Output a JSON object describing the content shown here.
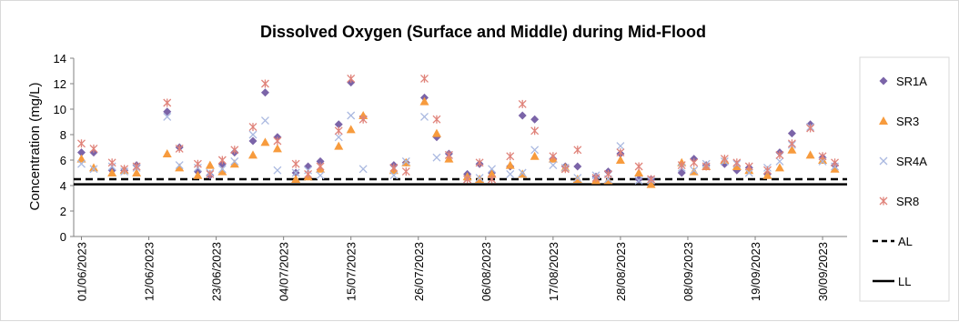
{
  "chart_data": {
    "type": "scatter",
    "title": "Dissolved Oxygen (Surface and Middle) during Mid-Flood",
    "xlabel": "",
    "ylabel": "Concentration (mg/L)",
    "ylim": [
      0,
      14
    ],
    "yticks": [
      0,
      2,
      4,
      6,
      8,
      10,
      12,
      14
    ],
    "xlim": [
      "2023-06-01",
      "2023-09-30"
    ],
    "xtick_labels": [
      "01/06/2023",
      "12/06/2023",
      "23/06/2023",
      "04/07/2023",
      "15/07/2023",
      "26/07/2023",
      "06/08/2023",
      "17/08/2023",
      "28/08/2023",
      "08/09/2023",
      "19/09/2023",
      "30/09/2023"
    ],
    "grid": false,
    "legend_position": "right",
    "series": [
      {
        "name": "SR1A",
        "marker": "diamond",
        "color": "#7B64A8",
        "points": [
          [
            "2023-06-01",
            6.6
          ],
          [
            "2023-06-03",
            6.6
          ],
          [
            "2023-06-06",
            5.2
          ],
          [
            "2023-06-08",
            5.2
          ],
          [
            "2023-06-10",
            5.6
          ],
          [
            "2023-06-15",
            9.8
          ],
          [
            "2023-06-17",
            7.0
          ],
          [
            "2023-06-20",
            5.1
          ],
          [
            "2023-06-22",
            4.8
          ],
          [
            "2023-06-24",
            5.7
          ],
          [
            "2023-06-26",
            6.6
          ],
          [
            "2023-06-29",
            7.5
          ],
          [
            "2023-07-01",
            11.3
          ],
          [
            "2023-07-03",
            7.8
          ],
          [
            "2023-07-06",
            5.0
          ],
          [
            "2023-07-08",
            5.5
          ],
          [
            "2023-07-10",
            5.9
          ],
          [
            "2023-07-13",
            8.8
          ],
          [
            "2023-07-15",
            12.1
          ],
          [
            "2023-07-17",
            9.4
          ],
          [
            "2023-07-22",
            5.6
          ],
          [
            "2023-07-24",
            5.8
          ],
          [
            "2023-07-27",
            10.9
          ],
          [
            "2023-07-29",
            7.8
          ],
          [
            "2023-07-31",
            6.5
          ],
          [
            "2023-08-03",
            4.9
          ],
          [
            "2023-08-05",
            5.7
          ],
          [
            "2023-08-07",
            5.0
          ],
          [
            "2023-08-10",
            5.5
          ],
          [
            "2023-08-12",
            9.5
          ],
          [
            "2023-08-14",
            9.2
          ],
          [
            "2023-08-17",
            6.1
          ],
          [
            "2023-08-19",
            5.5
          ],
          [
            "2023-08-21",
            5.5
          ],
          [
            "2023-08-24",
            4.7
          ],
          [
            "2023-08-26",
            5.1
          ],
          [
            "2023-08-28",
            6.5
          ],
          [
            "2023-08-31",
            4.5
          ],
          [
            "2023-09-02",
            4.5
          ],
          [
            "2023-09-07",
            5.0
          ],
          [
            "2023-09-09",
            6.1
          ],
          [
            "2023-09-11",
            5.6
          ],
          [
            "2023-09-14",
            5.7
          ],
          [
            "2023-09-16",
            5.2
          ],
          [
            "2023-09-18",
            5.4
          ],
          [
            "2023-09-21",
            4.9
          ],
          [
            "2023-09-23",
            6.6
          ],
          [
            "2023-09-25",
            8.1
          ],
          [
            "2023-09-28",
            8.8
          ],
          [
            "2023-09-30",
            6.2
          ],
          [
            "2023-10-02",
            5.6
          ]
        ]
      },
      {
        "name": "SR3",
        "marker": "triangle",
        "color": "#F79B3D",
        "points": [
          [
            "2023-06-01",
            6.1
          ],
          [
            "2023-06-03",
            5.4
          ],
          [
            "2023-06-06",
            5.0
          ],
          [
            "2023-06-08",
            5.2
          ],
          [
            "2023-06-10",
            5.0
          ],
          [
            "2023-06-15",
            6.5
          ],
          [
            "2023-06-17",
            5.4
          ],
          [
            "2023-06-20",
            4.8
          ],
          [
            "2023-06-22",
            5.6
          ],
          [
            "2023-06-24",
            5.1
          ],
          [
            "2023-06-26",
            5.7
          ],
          [
            "2023-06-29",
            6.4
          ],
          [
            "2023-07-01",
            7.4
          ],
          [
            "2023-07-03",
            6.9
          ],
          [
            "2023-07-06",
            4.5
          ],
          [
            "2023-07-08",
            4.7
          ],
          [
            "2023-07-10",
            5.3
          ],
          [
            "2023-07-13",
            7.1
          ],
          [
            "2023-07-15",
            8.4
          ],
          [
            "2023-07-17",
            9.5
          ],
          [
            "2023-07-22",
            5.2
          ],
          [
            "2023-07-24",
            5.8
          ],
          [
            "2023-07-27",
            10.6
          ],
          [
            "2023-07-29",
            8.1
          ],
          [
            "2023-07-31",
            6.1
          ],
          [
            "2023-08-03",
            4.7
          ],
          [
            "2023-08-05",
            4.5
          ],
          [
            "2023-08-07",
            4.9
          ],
          [
            "2023-08-10",
            5.6
          ],
          [
            "2023-08-12",
            4.9
          ],
          [
            "2023-08-14",
            6.3
          ],
          [
            "2023-08-17",
            6.1
          ],
          [
            "2023-08-19",
            5.4
          ],
          [
            "2023-08-21",
            4.5
          ],
          [
            "2023-08-24",
            4.4
          ],
          [
            "2023-08-26",
            4.4
          ],
          [
            "2023-08-28",
            6.0
          ],
          [
            "2023-08-31",
            5.0
          ],
          [
            "2023-09-02",
            4.1
          ],
          [
            "2023-09-07",
            5.8
          ],
          [
            "2023-09-09",
            5.1
          ],
          [
            "2023-09-11",
            5.5
          ],
          [
            "2023-09-14",
            6.0
          ],
          [
            "2023-09-16",
            5.5
          ],
          [
            "2023-09-18",
            5.2
          ],
          [
            "2023-09-21",
            4.8
          ],
          [
            "2023-09-23",
            5.4
          ],
          [
            "2023-09-25",
            6.8
          ],
          [
            "2023-09-28",
            6.4
          ],
          [
            "2023-09-30",
            6.0
          ],
          [
            "2023-10-02",
            5.3
          ]
        ]
      },
      {
        "name": "SR4A",
        "marker": "x",
        "color": "#A9B8E0",
        "points": [
          [
            "2023-06-01",
            5.7
          ],
          [
            "2023-06-03",
            5.3
          ],
          [
            "2023-06-06",
            5.5
          ],
          [
            "2023-06-08",
            5.1
          ],
          [
            "2023-06-10",
            5.4
          ],
          [
            "2023-06-15",
            9.4
          ],
          [
            "2023-06-17",
            5.6
          ],
          [
            "2023-06-20",
            5.4
          ],
          [
            "2023-06-22",
            5.0
          ],
          [
            "2023-06-24",
            5.3
          ],
          [
            "2023-06-26",
            5.9
          ],
          [
            "2023-06-29",
            8.0
          ],
          [
            "2023-07-01",
            9.1
          ],
          [
            "2023-07-03",
            5.2
          ],
          [
            "2023-07-06",
            5.0
          ],
          [
            "2023-07-08",
            5.2
          ],
          [
            "2023-07-10",
            4.8
          ],
          [
            "2023-07-13",
            7.8
          ],
          [
            "2023-07-15",
            9.5
          ],
          [
            "2023-07-17",
            5.3
          ],
          [
            "2023-07-22",
            4.8
          ],
          [
            "2023-07-24",
            5.9
          ],
          [
            "2023-07-27",
            9.4
          ],
          [
            "2023-07-29",
            6.2
          ],
          [
            "2023-07-31",
            6.4
          ],
          [
            "2023-08-03",
            4.5
          ],
          [
            "2023-08-05",
            4.6
          ],
          [
            "2023-08-07",
            5.3
          ],
          [
            "2023-08-10",
            4.9
          ],
          [
            "2023-08-12",
            5.0
          ],
          [
            "2023-08-14",
            6.8
          ],
          [
            "2023-08-17",
            5.6
          ],
          [
            "2023-08-19",
            5.4
          ],
          [
            "2023-08-21",
            4.6
          ],
          [
            "2023-08-24",
            4.8
          ],
          [
            "2023-08-26",
            4.5
          ],
          [
            "2023-08-28",
            7.1
          ],
          [
            "2023-08-31",
            4.4
          ],
          [
            "2023-09-02",
            4.4
          ],
          [
            "2023-09-07",
            5.4
          ],
          [
            "2023-09-09",
            5.2
          ],
          [
            "2023-09-11",
            5.7
          ],
          [
            "2023-09-14",
            5.9
          ],
          [
            "2023-09-16",
            5.7
          ],
          [
            "2023-09-18",
            5.0
          ],
          [
            "2023-09-21",
            5.4
          ],
          [
            "2023-09-23",
            5.9
          ],
          [
            "2023-09-25",
            7.2
          ],
          [
            "2023-09-28",
            8.6
          ],
          [
            "2023-09-30",
            5.9
          ],
          [
            "2023-10-02",
            5.5
          ]
        ]
      },
      {
        "name": "SR8",
        "marker": "star",
        "color": "#E0837A",
        "points": [
          [
            "2023-06-01",
            7.3
          ],
          [
            "2023-06-03",
            6.9
          ],
          [
            "2023-06-06",
            5.8
          ],
          [
            "2023-06-08",
            5.3
          ],
          [
            "2023-06-10",
            5.5
          ],
          [
            "2023-06-15",
            10.5
          ],
          [
            "2023-06-17",
            6.9
          ],
          [
            "2023-06-20",
            5.7
          ],
          [
            "2023-06-22",
            4.9
          ],
          [
            "2023-06-24",
            6.0
          ],
          [
            "2023-06-26",
            6.8
          ],
          [
            "2023-06-29",
            8.6
          ],
          [
            "2023-07-01",
            12.0
          ],
          [
            "2023-07-03",
            7.5
          ],
          [
            "2023-07-06",
            5.7
          ],
          [
            "2023-07-08",
            4.9
          ],
          [
            "2023-07-10",
            5.5
          ],
          [
            "2023-07-13",
            8.3
          ],
          [
            "2023-07-15",
            12.4
          ],
          [
            "2023-07-17",
            9.2
          ],
          [
            "2023-07-22",
            5.4
          ],
          [
            "2023-07-24",
            5.1
          ],
          [
            "2023-07-27",
            12.4
          ],
          [
            "2023-07-29",
            9.2
          ],
          [
            "2023-07-31",
            6.4
          ],
          [
            "2023-08-03",
            4.5
          ],
          [
            "2023-08-05",
            5.8
          ],
          [
            "2023-08-07",
            4.5
          ],
          [
            "2023-08-10",
            6.3
          ],
          [
            "2023-08-12",
            10.4
          ],
          [
            "2023-08-14",
            8.3
          ],
          [
            "2023-08-17",
            6.3
          ],
          [
            "2023-08-19",
            5.3
          ],
          [
            "2023-08-21",
            6.8
          ],
          [
            "2023-08-24",
            4.6
          ],
          [
            "2023-08-26",
            4.9
          ],
          [
            "2023-08-28",
            6.6
          ],
          [
            "2023-08-31",
            5.5
          ],
          [
            "2023-09-02",
            4.5
          ],
          [
            "2023-09-07",
            5.6
          ],
          [
            "2023-09-09",
            5.8
          ],
          [
            "2023-09-11",
            5.5
          ],
          [
            "2023-09-14",
            6.1
          ],
          [
            "2023-09-16",
            5.8
          ],
          [
            "2023-09-18",
            5.5
          ],
          [
            "2023-09-21",
            5.2
          ],
          [
            "2023-09-23",
            6.4
          ],
          [
            "2023-09-25",
            7.3
          ],
          [
            "2023-09-28",
            8.5
          ],
          [
            "2023-09-30",
            6.3
          ],
          [
            "2023-10-02",
            5.8
          ]
        ]
      }
    ],
    "reference_lines": [
      {
        "name": "AL",
        "value": 4.5,
        "style": "dashed",
        "color": "#000000"
      },
      {
        "name": "LL",
        "value": 4.1,
        "style": "solid",
        "color": "#000000"
      }
    ]
  }
}
